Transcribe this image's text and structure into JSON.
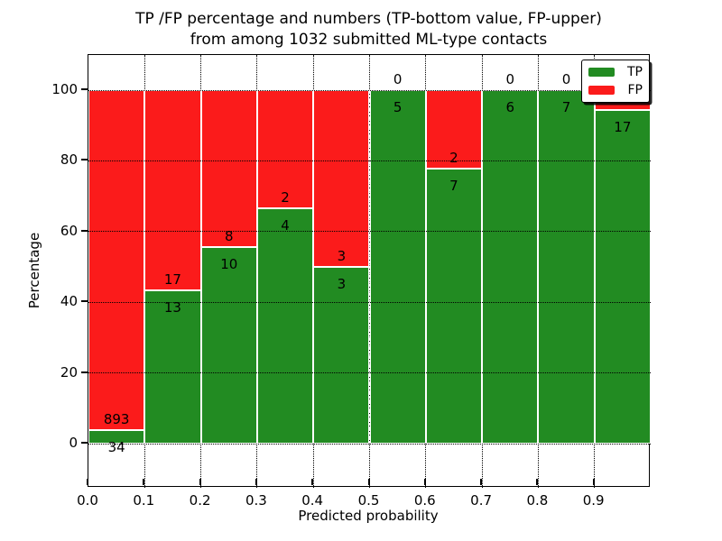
{
  "title": {
    "line1": "TP /FP percentage and numbers (TP-bottom value, FP-upper)",
    "line2": "from among 1032 submitted ML-type contacts"
  },
  "axes": {
    "ylabel": "Percentage",
    "xlabel": "Predicted probability",
    "ytick_values": [
      0,
      20,
      40,
      60,
      80,
      100
    ],
    "ytick_labels": [
      "0",
      "20",
      "40",
      "60",
      "80",
      "100"
    ],
    "xtick_values": [
      0.0,
      0.1,
      0.2,
      0.3,
      0.4,
      0.5,
      0.6,
      0.7,
      0.8,
      0.9
    ],
    "xtick_labels": [
      "0.0",
      "0.1",
      "0.2",
      "0.3",
      "0.4",
      "0.5",
      "0.6",
      "0.7",
      "0.8",
      "0.9"
    ]
  },
  "legend": {
    "items": [
      {
        "label": "TP",
        "color": "#228b22",
        "swatch": "green-swatch"
      },
      {
        "label": "FP",
        "color": "#fb1b1b",
        "swatch": "red-swatch"
      }
    ]
  },
  "colors": {
    "tp": "#228b22",
    "fp": "#fb1b1b",
    "grid": "#000000",
    "background": "#ffffff"
  },
  "chart_data": {
    "type": "bar",
    "stacked": true,
    "percent_normalized": true,
    "title": "TP /FP percentage and numbers (TP-bottom value, FP-upper) from among 1032 submitted ML-type contacts",
    "xlabel": "Predicted probability",
    "ylabel": "Percentage",
    "xlim": [
      0.0,
      1.0
    ],
    "ylim": [
      -13,
      110
    ],
    "bin_width": 0.1,
    "grid": true,
    "legend_position": "upper right",
    "total_contacts": 1032,
    "categories": [
      "0.0-0.1",
      "0.1-0.2",
      "0.2-0.3",
      "0.3-0.4",
      "0.4-0.5",
      "0.5-0.6",
      "0.6-0.7",
      "0.7-0.8",
      "0.8-0.9",
      "0.9-1.0"
    ],
    "series": [
      {
        "name": "TP",
        "color": "#228b22",
        "values": [
          34,
          13,
          10,
          4,
          3,
          5,
          7,
          6,
          7,
          17
        ]
      },
      {
        "name": "FP",
        "color": "#fb1b1b",
        "values": [
          893,
          17,
          8,
          2,
          3,
          0,
          2,
          0,
          0,
          1
        ]
      }
    ],
    "bins": [
      {
        "x_start": 0.0,
        "x_end": 0.1,
        "tp": 34,
        "fp": 893,
        "tp_pct": 3.7,
        "fp_pct": 96.3,
        "fp_label_visible": true
      },
      {
        "x_start": 0.1,
        "x_end": 0.2,
        "tp": 13,
        "fp": 17,
        "tp_pct": 43.3,
        "fp_pct": 56.7,
        "fp_label_visible": true
      },
      {
        "x_start": 0.2,
        "x_end": 0.3,
        "tp": 10,
        "fp": 8,
        "tp_pct": 55.6,
        "fp_pct": 44.4,
        "fp_label_visible": true
      },
      {
        "x_start": 0.3,
        "x_end": 0.4,
        "tp": 4,
        "fp": 2,
        "tp_pct": 66.7,
        "fp_pct": 33.3,
        "fp_label_visible": true
      },
      {
        "x_start": 0.4,
        "x_end": 0.5,
        "tp": 3,
        "fp": 3,
        "tp_pct": 50.0,
        "fp_pct": 50.0,
        "fp_label_visible": true
      },
      {
        "x_start": 0.5,
        "x_end": 0.6,
        "tp": 5,
        "fp": 0,
        "tp_pct": 100.0,
        "fp_pct": 0.0,
        "fp_label_visible": true
      },
      {
        "x_start": 0.6,
        "x_end": 0.7,
        "tp": 7,
        "fp": 2,
        "tp_pct": 77.8,
        "fp_pct": 22.2,
        "fp_label_visible": true
      },
      {
        "x_start": 0.7,
        "x_end": 0.8,
        "tp": 6,
        "fp": 0,
        "tp_pct": 100.0,
        "fp_pct": 0.0,
        "fp_label_visible": true
      },
      {
        "x_start": 0.8,
        "x_end": 0.9,
        "tp": 7,
        "fp": 0,
        "tp_pct": 100.0,
        "fp_pct": 0.0,
        "fp_label_visible": true
      },
      {
        "x_start": 0.9,
        "x_end": 1.0,
        "tp": 17,
        "fp": 1,
        "tp_pct": 94.4,
        "fp_pct": 5.6,
        "fp_label_visible": false
      }
    ]
  }
}
